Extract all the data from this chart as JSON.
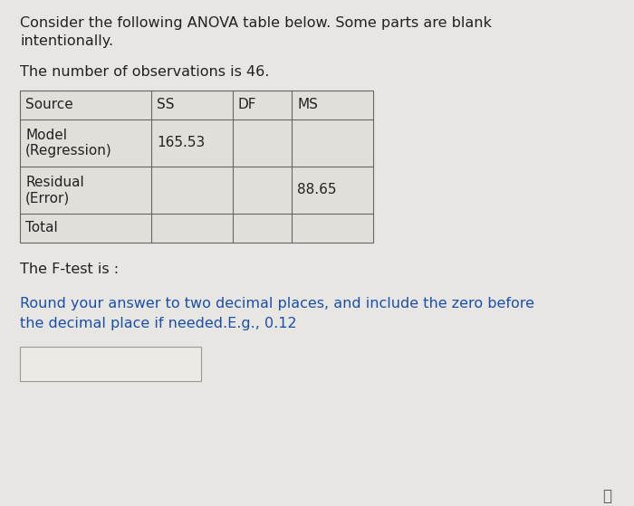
{
  "title_line1": "Consider the following ANOVA table below. Some parts are blank",
  "title_line2": "intentionally.",
  "obs_text": "The number of observations is 46.",
  "table_headers": [
    "Source",
    "SS",
    "DF",
    "MS"
  ],
  "row1_label": "Model\n(Regression)",
  "row1_ss": "165.53",
  "row1_df": "",
  "row1_ms": "",
  "row2_label": "Residual\n(Error)",
  "row2_ss": "",
  "row2_df": "",
  "row2_ms": "88.65",
  "row3_label": "Total",
  "row3_ss": "",
  "row3_df": "",
  "row3_ms": "",
  "ftest_label": "The F-test is :",
  "note_line1": "Round your answer to two decimal places, and include the zero before",
  "note_line2": "the decimal place if needed.E.g., 0.12",
  "bg_color": "#e8e6e3",
  "cell_bg": "#e2dfdb",
  "border_color": "#666666",
  "text_color": "#222222",
  "blue_color": "#1a4faa",
  "input_box_color": "#edeae6",
  "font_size_body": 11.5,
  "font_size_table": 11.0,
  "fig_w": 7.0,
  "fig_h": 5.59,
  "dpi": 100
}
